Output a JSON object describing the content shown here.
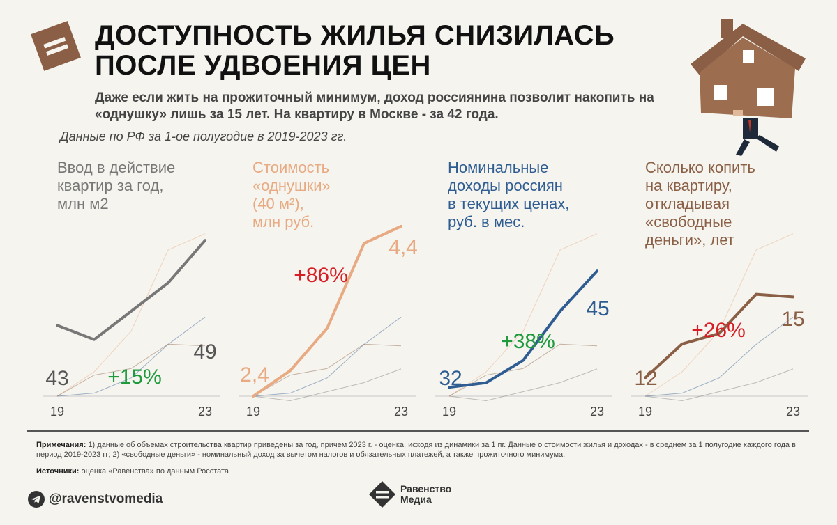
{
  "header": {
    "title_line1": "ДОСТУПНОСТЬ ЖИЛЬЯ СНИЗИЛАСЬ",
    "title_line2": "ПОСЛЕ УДВОЕНИЯ ЦЕН",
    "subtitle": "Даже если жить на прожиточный минимум, доход россиянина позволит накопить на «однушку» лишь за 15 лет. На квартиру в Москве - за 42 года.",
    "data_note": "Данные по РФ за 1-ое полугодие в 2019-2023 гг."
  },
  "colors": {
    "background": "#f5f4ef",
    "housing": "#777777",
    "price": "#e8aa82",
    "income": "#2f5d92",
    "years": "#8a5f45",
    "increase": "#1f9a3c",
    "price_growth": "#d71e24"
  },
  "chart_data": [
    {
      "type": "line",
      "title": "Ввод в действие\nквартир за год,\nмлн м2",
      "x": [
        2019,
        2020,
        2021,
        2022,
        2023
      ],
      "values": [
        43,
        42,
        44,
        46,
        49
      ],
      "ylim": [
        38,
        50
      ],
      "start_label": "43",
      "end_label": "49",
      "change_label": "+15%",
      "x_start_label": "19",
      "x_end_label": "23"
    },
    {
      "type": "line",
      "title": "Стоимость\n«однушки»\n(40 м²),\nмлн руб.",
      "x": [
        2019,
        2020,
        2021,
        2022,
        2023
      ],
      "values": [
        2.4,
        2.7,
        3.2,
        4.2,
        4.4
      ],
      "ylim": [
        2.4,
        4.4
      ],
      "start_label": "2,4",
      "end_label": "4,4",
      "change_label": "+86%",
      "x_start_label": "19",
      "x_end_label": "23"
    },
    {
      "type": "line",
      "title": "Номинальные\nдоходы россиян\nв текущих ценах,\nруб. в мес.",
      "x": [
        2019,
        2020,
        2021,
        2022,
        2023
      ],
      "values": [
        32,
        32.5,
        35,
        40.5,
        45
      ],
      "ylim": [
        31,
        50
      ],
      "start_label": "32",
      "end_label": "45",
      "change_label": "+38%",
      "x_start_label": "19",
      "x_end_label": "23"
    },
    {
      "type": "line",
      "title": "Сколько копить\nна квартиру,\nоткладывая\n«свободные\nденьги», лет",
      "x": [
        2019,
        2020,
        2021,
        2022,
        2023
      ],
      "values": [
        12,
        13.3,
        13.7,
        15.2,
        15.1
      ],
      "ylim": [
        11.3,
        17.8
      ],
      "start_label": "12",
      "end_label": "15",
      "change_label": "+26%",
      "x_start_label": "19",
      "x_end_label": "23"
    }
  ],
  "notes": {
    "label": "Примечания:",
    "text": "1) данные об объемах строительства квартир приведены за год, причем 2023 г. - оценка, исходя из динамики за 1 пг. Данные о стоимости жилья и доходах - в среднем за 1 полугодие каждого года в период 2019-2023 гг; 2) «свободные деньги» - номинальный доход за вычетом налогов и обязательных платежей, а также прожиточного минимума."
  },
  "sources": {
    "label": "Источники:",
    "text": "оценка «Равенства» по данным Росстата"
  },
  "footer": {
    "telegram": "@ravenstvomedia",
    "brand": "Равенство\nМедиа"
  }
}
